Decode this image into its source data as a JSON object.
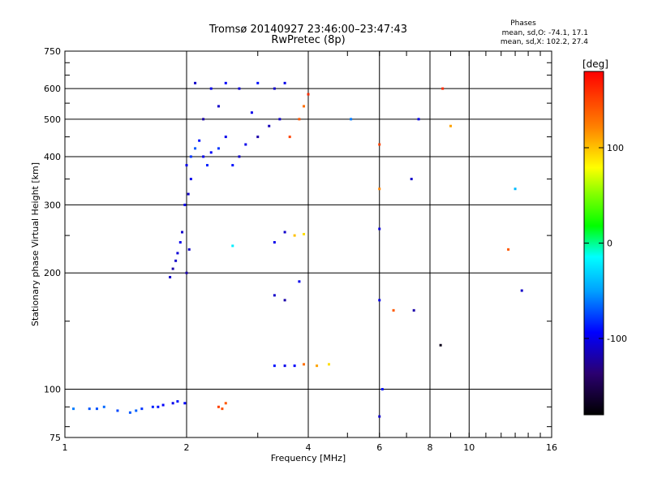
{
  "chart_data": {
    "type": "scatter",
    "title": "Tromsø 20140927 23:46:00–23:47:43",
    "subtitle": "RwPretec (8p)",
    "stats": {
      "heading": "Phases",
      "line1": "mean, sd,O: -74.1, 17.1",
      "line2": "mean, sd,X: 102.2, 27.4"
    },
    "xlabel": "Frequency [MHz]",
    "ylabel": "Stationary phase Virtual Height [km]",
    "x_scale": "log",
    "y_scale": "log",
    "xlim": [
      1,
      16
    ],
    "ylim": [
      75,
      750
    ],
    "x_ticks": [
      1,
      2,
      4,
      6,
      8,
      10,
      16
    ],
    "x_tick_labels": [
      "1",
      "2",
      "4",
      "6",
      "8",
      "10",
      "16"
    ],
    "y_ticks": [
      75,
      100,
      200,
      300,
      400,
      500,
      600,
      750
    ],
    "y_tick_labels": [
      "75",
      "100",
      "200",
      "300",
      "400",
      "500",
      "600",
      "750"
    ],
    "grid": true,
    "colorbar": {
      "label": "[deg]",
      "range": [
        -180,
        180
      ],
      "ticks": [
        100,
        0,
        -100
      ],
      "tick_labels": [
        "100",
        "0",
        "-100"
      ]
    },
    "series": [
      {
        "values": [
          [
            1.05,
            89,
            -60
          ],
          [
            1.15,
            89,
            -70
          ],
          [
            1.25,
            90,
            -65
          ],
          [
            1.35,
            88,
            -75
          ],
          [
            1.45,
            87,
            -70
          ],
          [
            1.55,
            89,
            -80
          ],
          [
            1.65,
            90,
            -85
          ],
          [
            1.75,
            91,
            -95
          ],
          [
            1.85,
            92,
            -100
          ],
          [
            1.98,
            92,
            -95
          ],
          [
            1.2,
            89,
            -72
          ],
          [
            1.5,
            88,
            -68
          ],
          [
            1.7,
            90,
            -90
          ],
          [
            1.9,
            93,
            -88
          ],
          [
            1.82,
            195,
            -110
          ],
          [
            1.85,
            205,
            -120
          ],
          [
            1.88,
            215,
            -110
          ],
          [
            1.9,
            225,
            -105
          ],
          [
            1.93,
            240,
            -100
          ],
          [
            1.95,
            255,
            -110
          ],
          [
            1.98,
            300,
            -100
          ],
          [
            2.02,
            320,
            -110
          ],
          [
            2.05,
            350,
            -100
          ],
          [
            2.0,
            200,
            -120
          ],
          [
            2.03,
            230,
            -110
          ],
          [
            2.0,
            380,
            -100
          ],
          [
            2.05,
            400,
            -80
          ],
          [
            2.1,
            420,
            -70
          ],
          [
            2.15,
            440,
            -90
          ],
          [
            2.2,
            400,
            -100
          ],
          [
            2.25,
            380,
            -85
          ],
          [
            2.3,
            410,
            -95
          ],
          [
            2.4,
            420,
            -80
          ],
          [
            2.5,
            450,
            -100
          ],
          [
            2.6,
            380,
            -90
          ],
          [
            2.7,
            400,
            -110
          ],
          [
            2.8,
            430,
            -100
          ],
          [
            3.0,
            450,
            -120
          ],
          [
            3.2,
            480,
            -115
          ],
          [
            3.4,
            500,
            -110
          ],
          [
            2.1,
            620,
            -110
          ],
          [
            2.3,
            600,
            -100
          ],
          [
            2.5,
            620,
            -95
          ],
          [
            2.7,
            600,
            -105
          ],
          [
            3.0,
            620,
            -90
          ],
          [
            3.3,
            600,
            -110
          ],
          [
            3.5,
            620,
            -100
          ],
          [
            2.2,
            500,
            -120
          ],
          [
            2.4,
            540,
            -110
          ],
          [
            2.9,
            520,
            -100
          ],
          [
            2.4,
            90,
            150
          ],
          [
            2.5,
            92,
            140
          ],
          [
            2.45,
            89,
            145
          ],
          [
            2.6,
            235,
            -20
          ],
          [
            3.3,
            115,
            -90
          ],
          [
            3.5,
            115,
            -100
          ],
          [
            3.7,
            115,
            -95
          ],
          [
            3.9,
            116,
            130
          ],
          [
            4.2,
            115,
            110
          ],
          [
            4.5,
            116,
            90
          ],
          [
            3.3,
            240,
            -100
          ],
          [
            3.5,
            255,
            -110
          ],
          [
            3.7,
            250,
            100
          ],
          [
            3.9,
            252,
            90
          ],
          [
            3.3,
            175,
            -110
          ],
          [
            3.5,
            170,
            -120
          ],
          [
            3.8,
            190,
            -100
          ],
          [
            3.6,
            450,
            150
          ],
          [
            3.8,
            500,
            140
          ],
          [
            3.9,
            540,
            130
          ],
          [
            4.0,
            580,
            160
          ],
          [
            6.0,
            85,
            -110
          ],
          [
            6.0,
            170,
            -100
          ],
          [
            6.0,
            260,
            -105
          ],
          [
            6.0,
            330,
            120
          ],
          [
            6.0,
            430,
            150
          ],
          [
            6.1,
            100,
            -90
          ],
          [
            6.5,
            160,
            140
          ],
          [
            7.2,
            350,
            -110
          ],
          [
            7.3,
            160,
            -120
          ],
          [
            7.5,
            500,
            -100
          ],
          [
            8.5,
            130,
            -170
          ],
          [
            8.6,
            600,
            160
          ],
          [
            9.0,
            480,
            110
          ],
          [
            12.5,
            230,
            140
          ],
          [
            13.0,
            330,
            -40
          ],
          [
            13.5,
            180,
            -110
          ],
          [
            5.1,
            500,
            -60
          ]
        ]
      }
    ]
  }
}
